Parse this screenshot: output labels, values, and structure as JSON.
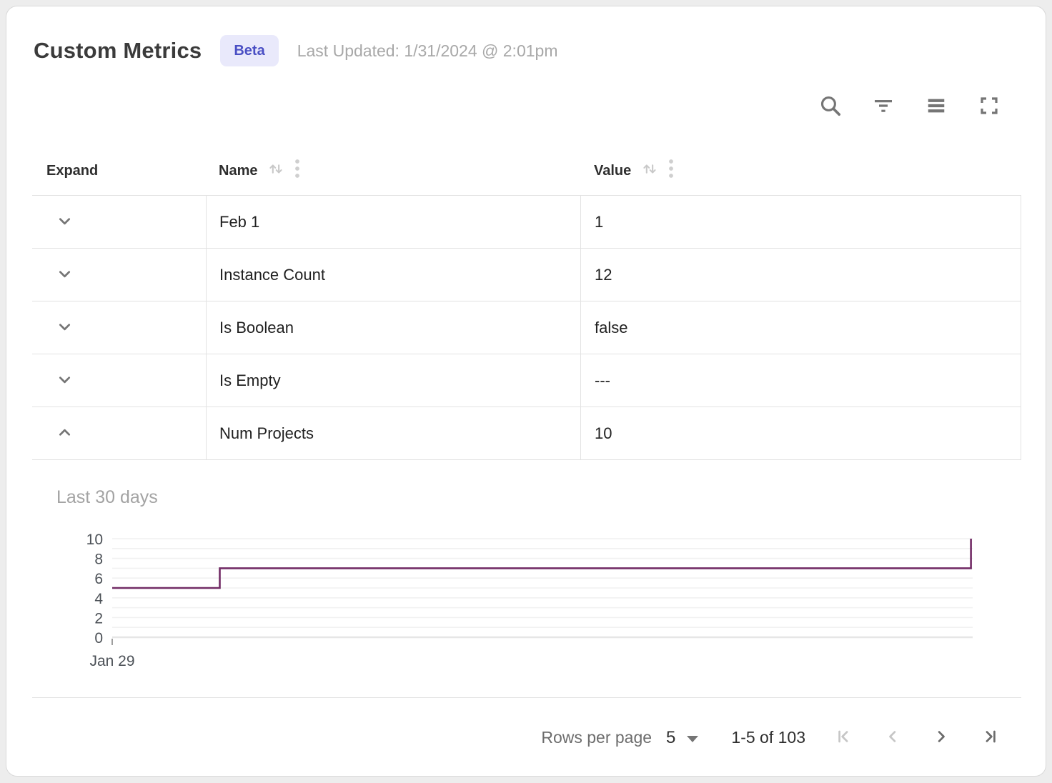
{
  "header": {
    "title": "Custom Metrics",
    "badge": "Beta",
    "last_updated": "Last Updated: 1/31/2024 @ 2:01pm"
  },
  "toolbar": {
    "icons": [
      "search-icon",
      "filter-icon",
      "density-icon",
      "fullscreen-icon"
    ]
  },
  "table": {
    "columns": [
      {
        "label": "Expand"
      },
      {
        "label": "Name",
        "sortable": true,
        "menu": true
      },
      {
        "label": "Value",
        "sortable": true,
        "menu": true
      }
    ],
    "rows": [
      {
        "name": "Feb 1",
        "value": "1",
        "expanded": false
      },
      {
        "name": "Instance Count",
        "value": "12",
        "expanded": false
      },
      {
        "name": "Is Boolean",
        "value": "false",
        "expanded": false
      },
      {
        "name": "Is Empty",
        "value": "---",
        "expanded": false
      },
      {
        "name": "Num Projects",
        "value": "10",
        "expanded": true
      }
    ]
  },
  "chart_data": {
    "type": "line",
    "subtype": "step",
    "title": "Last 30 days",
    "series_name": "Num Projects",
    "ylim": [
      0,
      10
    ],
    "yticks": [
      0,
      2,
      4,
      6,
      8,
      10
    ],
    "grid": "horizontal gridline at every 1 unit",
    "x_tick_labels": [
      "Jan 29"
    ],
    "line_color": "#722c66",
    "points": [
      {
        "x": 0.0,
        "y": 5
      },
      {
        "x": 0.125,
        "y": 5
      },
      {
        "x": 0.125,
        "y": 7
      },
      {
        "x": 0.998,
        "y": 7
      },
      {
        "x": 0.998,
        "y": 10
      }
    ]
  },
  "footer": {
    "rows_per_page_label": "Rows per page",
    "rows_per_page_value": "5",
    "range_label": "1-5 of 103"
  },
  "colors": {
    "accent_line": "#722c66",
    "badge_bg": "#e9e9fb",
    "badge_text": "#4a4fc4",
    "border": "#e2e2e2",
    "icon_gray": "#757575",
    "icon_disabled": "#c6c6c6",
    "muted_text": "#a3a3a3"
  }
}
